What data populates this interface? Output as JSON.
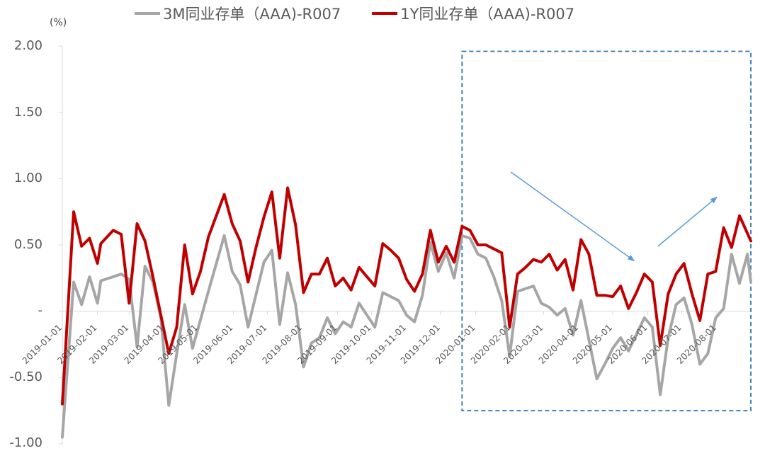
{
  "legend": [
    {
      "label": "3M同业存单（AAA)-R007",
      "color": "#a6a6a6"
    },
    {
      "label": "1Y同业存单（AAA)-R007",
      "color": "#c00000"
    }
  ],
  "unit_label": "(%)",
  "chart_data": {
    "type": "line",
    "ylim": [
      -1.0,
      2.0
    ],
    "yticks": [
      2.0,
      1.5,
      1.0,
      0.5,
      0.0,
      -0.5,
      -1.0
    ],
    "ytick_labels": [
      "2.00",
      "1.50",
      "1.00",
      "0.50",
      "-",
      "-0.50",
      "-1.00"
    ],
    "xticks": [
      "2019-01-01",
      "2019-02-01",
      "2019-03-01",
      "2019-04-01",
      "2019-05-01",
      "2019-06-01",
      "2019-07-01",
      "2019-08-01",
      "2019-09-01",
      "2019-10-01",
      "2019-11-01",
      "2019-12-01",
      "2020-01-01",
      "2020-02-01",
      "2020-03-01",
      "2020-04-01",
      "2020-05-01",
      "2020-06-01",
      "2020-07-01",
      "2020-08-01"
    ],
    "x_start": "2019-01-01",
    "x_end": "2020-08-31",
    "highlight": {
      "start": "2019-12-20",
      "end": "2020-08-31",
      "ymin": -0.75,
      "ymax": 1.96,
      "color": "#2e75b6"
    },
    "arrows": [
      {
        "from": [
          "2020-02-01",
          1.05
        ],
        "to": [
          "2020-05-20",
          0.38
        ],
        "color": "#5b9bd5"
      },
      {
        "from": [
          "2020-06-10",
          0.49
        ],
        "to": [
          "2020-08-01",
          0.86
        ],
        "color": "#5b9bd5"
      }
    ],
    "series": [
      {
        "name": "3M同业存单（AAA)-R007",
        "color": "#a6a6a6",
        "points": [
          [
            "2019-01-01",
            -0.95
          ],
          [
            "2019-01-11",
            0.22
          ],
          [
            "2019-01-18",
            0.05
          ],
          [
            "2019-01-25",
            0.26
          ],
          [
            "2019-02-01",
            0.06
          ],
          [
            "2019-02-04",
            0.23
          ],
          [
            "2019-02-15",
            0.26
          ],
          [
            "2019-02-22",
            0.28
          ],
          [
            "2019-03-01",
            0.24
          ],
          [
            "2019-03-08",
            -0.27
          ],
          [
            "2019-03-15",
            0.34
          ],
          [
            "2019-03-22",
            0.22
          ],
          [
            "2019-03-29",
            -0.05
          ],
          [
            "2019-04-05",
            -0.71
          ],
          [
            "2019-04-12",
            -0.32
          ],
          [
            "2019-04-19",
            0.05
          ],
          [
            "2019-04-26",
            -0.28
          ],
          [
            "2019-05-10",
            0.15
          ],
          [
            "2019-05-24",
            0.57
          ],
          [
            "2019-05-31",
            0.3
          ],
          [
            "2019-06-07",
            0.2
          ],
          [
            "2019-06-14",
            -0.12
          ],
          [
            "2019-06-28",
            0.37
          ],
          [
            "2019-07-05",
            0.46
          ],
          [
            "2019-07-12",
            -0.1
          ],
          [
            "2019-07-19",
            0.29
          ],
          [
            "2019-07-26",
            0.05
          ],
          [
            "2019-08-02",
            -0.42
          ],
          [
            "2019-08-09",
            -0.24
          ],
          [
            "2019-08-16",
            -0.2
          ],
          [
            "2019-08-23",
            -0.05
          ],
          [
            "2019-08-30",
            -0.17
          ],
          [
            "2019-09-06",
            -0.08
          ],
          [
            "2019-09-13",
            -0.12
          ],
          [
            "2019-09-20",
            0.06
          ],
          [
            "2019-10-04",
            -0.12
          ],
          [
            "2019-10-11",
            0.14
          ],
          [
            "2019-10-25",
            0.08
          ],
          [
            "2019-11-01",
            -0.03
          ],
          [
            "2019-11-08",
            -0.08
          ],
          [
            "2019-11-15",
            0.12
          ],
          [
            "2019-11-22",
            0.52
          ],
          [
            "2019-11-29",
            0.3
          ],
          [
            "2019-12-06",
            0.44
          ],
          [
            "2019-12-13",
            0.25
          ],
          [
            "2019-12-20",
            0.57
          ],
          [
            "2019-12-27",
            0.55
          ],
          [
            "2020-01-03",
            0.43
          ],
          [
            "2020-01-10",
            0.4
          ],
          [
            "2020-01-17",
            0.26
          ],
          [
            "2020-01-24",
            0.08
          ],
          [
            "2020-01-31",
            -0.34
          ],
          [
            "2020-02-07",
            0.15
          ],
          [
            "2020-02-21",
            0.19
          ],
          [
            "2020-02-28",
            0.06
          ],
          [
            "2020-03-06",
            0.03
          ],
          [
            "2020-03-13",
            -0.03
          ],
          [
            "2020-03-20",
            0.02
          ],
          [
            "2020-03-27",
            -0.18
          ],
          [
            "2020-04-03",
            0.08
          ],
          [
            "2020-04-17",
            -0.51
          ],
          [
            "2020-04-24",
            -0.4
          ],
          [
            "2020-05-01",
            -0.28
          ],
          [
            "2020-05-08",
            -0.2
          ],
          [
            "2020-05-15",
            -0.3
          ],
          [
            "2020-05-29",
            -0.05
          ],
          [
            "2020-06-05",
            -0.12
          ],
          [
            "2020-06-12",
            -0.63
          ],
          [
            "2020-06-19",
            -0.2
          ],
          [
            "2020-06-26",
            0.05
          ],
          [
            "2020-07-03",
            0.1
          ],
          [
            "2020-07-10",
            -0.1
          ],
          [
            "2020-07-17",
            -0.4
          ],
          [
            "2020-07-24",
            -0.32
          ],
          [
            "2020-07-31",
            -0.05
          ],
          [
            "2020-08-07",
            0.02
          ],
          [
            "2020-08-14",
            0.43
          ],
          [
            "2020-08-21",
            0.21
          ],
          [
            "2020-08-28",
            0.43
          ],
          [
            "2020-08-31",
            0.22
          ]
        ]
      },
      {
        "name": "1Y同业存单（AAA)-R007",
        "color": "#c00000",
        "points": [
          [
            "2019-01-01",
            -0.7
          ],
          [
            "2019-01-11",
            0.75
          ],
          [
            "2019-01-18",
            0.49
          ],
          [
            "2019-01-25",
            0.55
          ],
          [
            "2019-02-01",
            0.36
          ],
          [
            "2019-02-04",
            0.51
          ],
          [
            "2019-02-15",
            0.61
          ],
          [
            "2019-02-22",
            0.58
          ],
          [
            "2019-03-01",
            0.06
          ],
          [
            "2019-03-08",
            0.66
          ],
          [
            "2019-03-15",
            0.53
          ],
          [
            "2019-03-22",
            0.26
          ],
          [
            "2019-04-05",
            -0.32
          ],
          [
            "2019-04-12",
            -0.12
          ],
          [
            "2019-04-19",
            0.5
          ],
          [
            "2019-04-26",
            0.13
          ],
          [
            "2019-05-03",
            0.3
          ],
          [
            "2019-05-10",
            0.56
          ],
          [
            "2019-05-24",
            0.88
          ],
          [
            "2019-05-31",
            0.66
          ],
          [
            "2019-06-07",
            0.53
          ],
          [
            "2019-06-14",
            0.22
          ],
          [
            "2019-06-21",
            0.48
          ],
          [
            "2019-06-28",
            0.71
          ],
          [
            "2019-07-05",
            0.9
          ],
          [
            "2019-07-12",
            0.4
          ],
          [
            "2019-07-19",
            0.93
          ],
          [
            "2019-07-26",
            0.65
          ],
          [
            "2019-08-02",
            0.14
          ],
          [
            "2019-08-09",
            0.28
          ],
          [
            "2019-08-16",
            0.28
          ],
          [
            "2019-08-23",
            0.4
          ],
          [
            "2019-08-30",
            0.19
          ],
          [
            "2019-09-06",
            0.25
          ],
          [
            "2019-09-13",
            0.16
          ],
          [
            "2019-09-20",
            0.33
          ],
          [
            "2019-10-04",
            0.19
          ],
          [
            "2019-10-11",
            0.51
          ],
          [
            "2019-10-18",
            0.46
          ],
          [
            "2019-10-25",
            0.4
          ],
          [
            "2019-11-01",
            0.24
          ],
          [
            "2019-11-08",
            0.15
          ],
          [
            "2019-11-15",
            0.28
          ],
          [
            "2019-11-22",
            0.61
          ],
          [
            "2019-11-29",
            0.37
          ],
          [
            "2019-12-06",
            0.49
          ],
          [
            "2019-12-13",
            0.37
          ],
          [
            "2019-12-20",
            0.64
          ],
          [
            "2019-12-27",
            0.61
          ],
          [
            "2020-01-03",
            0.5
          ],
          [
            "2020-01-10",
            0.5
          ],
          [
            "2020-01-17",
            0.47
          ],
          [
            "2020-01-24",
            0.44
          ],
          [
            "2020-01-31",
            -0.12
          ],
          [
            "2020-02-07",
            0.28
          ],
          [
            "2020-02-14",
            0.33
          ],
          [
            "2020-02-21",
            0.39
          ],
          [
            "2020-02-28",
            0.37
          ],
          [
            "2020-03-06",
            0.43
          ],
          [
            "2020-03-13",
            0.31
          ],
          [
            "2020-03-20",
            0.39
          ],
          [
            "2020-03-27",
            0.16
          ],
          [
            "2020-04-03",
            0.54
          ],
          [
            "2020-04-10",
            0.43
          ],
          [
            "2020-04-17",
            0.12
          ],
          [
            "2020-04-24",
            0.12
          ],
          [
            "2020-05-01",
            0.11
          ],
          [
            "2020-05-08",
            0.19
          ],
          [
            "2020-05-15",
            0.02
          ],
          [
            "2020-05-22",
            0.14
          ],
          [
            "2020-05-29",
            0.28
          ],
          [
            "2020-06-05",
            0.22
          ],
          [
            "2020-06-12",
            -0.26
          ],
          [
            "2020-06-19",
            0.13
          ],
          [
            "2020-06-26",
            0.28
          ],
          [
            "2020-07-03",
            0.36
          ],
          [
            "2020-07-10",
            0.13
          ],
          [
            "2020-07-17",
            -0.07
          ],
          [
            "2020-07-24",
            0.28
          ],
          [
            "2020-07-31",
            0.3
          ],
          [
            "2020-08-07",
            0.63
          ],
          [
            "2020-08-14",
            0.48
          ],
          [
            "2020-08-21",
            0.72
          ],
          [
            "2020-08-31",
            0.53
          ]
        ]
      }
    ]
  }
}
